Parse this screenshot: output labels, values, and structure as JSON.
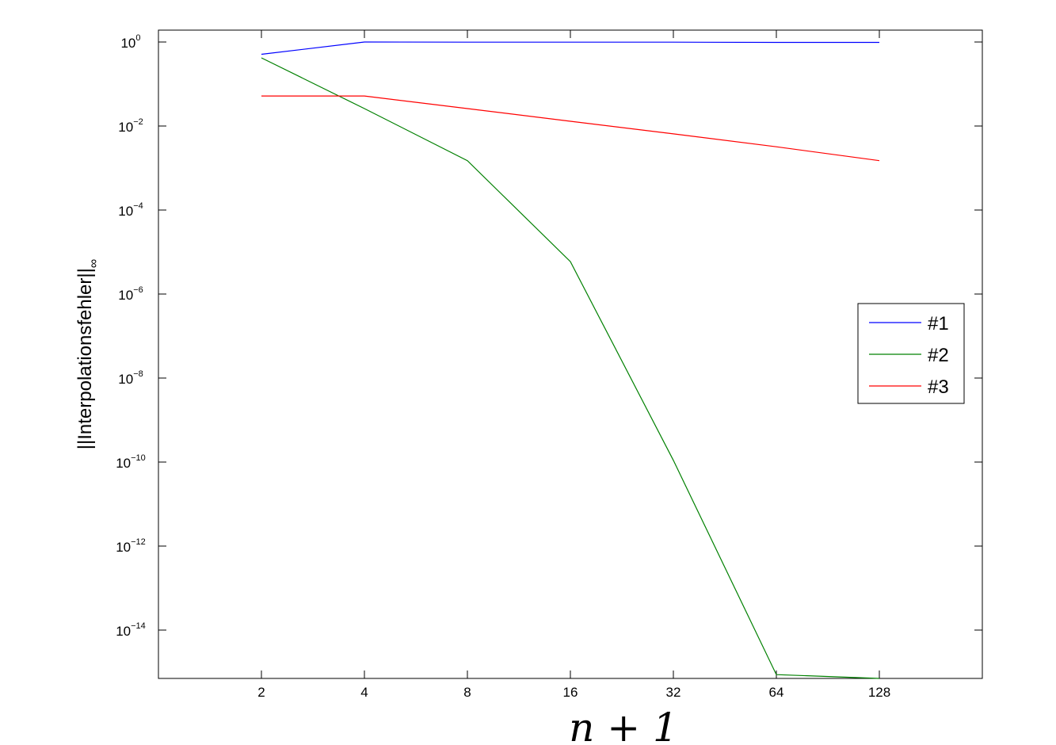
{
  "chart_data": {
    "type": "line",
    "title": "",
    "xlabel": "n + 1",
    "ylabel": "||Interpolationsfehler||",
    "ylabel_subscript": "∞",
    "xscale": "log2",
    "yscale": "log",
    "xlim": [
      1,
      256
    ],
    "ylim": [
      7e-16,
      1.9
    ],
    "grid": false,
    "legend_position": "right",
    "x": [
      2,
      4,
      8,
      16,
      32,
      64,
      128
    ],
    "x_tick_labels": [
      "2",
      "4",
      "8",
      "16",
      "32",
      "64",
      "128"
    ],
    "y_ticks": [
      {
        "base": "10",
        "exp": "0",
        "value": 1
      },
      {
        "base": "10",
        "exp": "−2",
        "value": 0.01
      },
      {
        "base": "10",
        "exp": "−4",
        "value": 0.0001
      },
      {
        "base": "10",
        "exp": "−6",
        "value": 1e-06
      },
      {
        "base": "10",
        "exp": "−8",
        "value": 1e-08
      },
      {
        "base": "10",
        "exp": "−10",
        "value": 1e-10
      },
      {
        "base": "10",
        "exp": "−12",
        "value": 1e-12
      },
      {
        "base": "10",
        "exp": "−14",
        "value": 1e-14
      }
    ],
    "series": [
      {
        "name": "#1",
        "color": "#0000ff",
        "values": [
          0.51,
          1.0,
          0.99,
          0.99,
          0.99,
          0.98,
          0.98
        ]
      },
      {
        "name": "#2",
        "color": "#008000",
        "values": [
          0.42,
          0.026,
          0.0015,
          5.9e-06,
          1.1e-10,
          8.7e-16,
          6.5e-16
        ]
      },
      {
        "name": "#3",
        "color": "#ff0000",
        "values": [
          0.052,
          0.052,
          0.026,
          0.013,
          0.0065,
          0.0032,
          0.0015
        ]
      }
    ]
  }
}
